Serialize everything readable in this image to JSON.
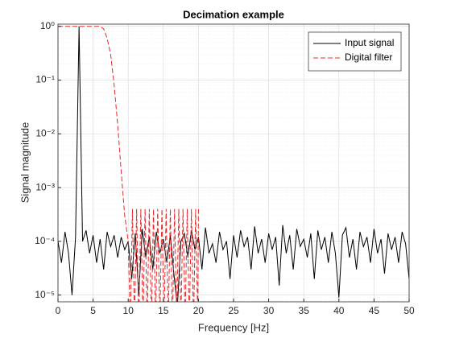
{
  "chart_data": {
    "type": "line",
    "title": "Decimation example",
    "xlabel": "Frequency [Hz]",
    "ylabel": "Signal magnitude",
    "log_y": true,
    "grid": true,
    "minor_grid": true,
    "legend": "upper right",
    "xlim": [
      0,
      50
    ],
    "xticks": [
      0,
      5,
      10,
      15,
      20,
      25,
      30,
      35,
      40,
      45,
      50
    ],
    "ylim": [
      7.5e-06,
      1.1
    ],
    "yticks": [
      {
        "value": 1e-05,
        "label": "10⁻⁵"
      },
      {
        "value": 0.0001,
        "label": "10⁻⁴"
      },
      {
        "value": 0.001,
        "label": "10⁻³"
      },
      {
        "value": 0.01,
        "label": "10⁻²"
      },
      {
        "value": 0.1,
        "label": "10⁻¹"
      },
      {
        "value": 1,
        "label": "10⁰"
      }
    ],
    "series": [
      {
        "name": "Input signal",
        "color": "#000000",
        "style": "solid",
        "x": [
          0,
          0.5,
          1,
          1.5,
          2,
          2.5,
          3,
          3.5,
          4,
          4.5,
          5,
          5.5,
          6,
          6.5,
          7,
          7.5,
          8,
          8.5,
          9,
          9.5,
          10,
          10.5,
          11,
          11.5,
          12,
          12.5,
          13,
          13.5,
          14,
          14.5,
          15,
          15.5,
          16,
          16.5,
          17,
          17.5,
          18,
          18.5,
          19,
          19.5,
          20,
          20.5,
          21,
          21.5,
          22,
          22.5,
          23,
          23.5,
          24,
          24.5,
          25,
          25.5,
          26,
          26.5,
          27,
          27.5,
          28,
          28.5,
          29,
          29.5,
          30,
          30.5,
          31,
          31.5,
          32,
          32.5,
          33,
          33.5,
          34,
          34.5,
          35,
          35.5,
          36,
          36.5,
          37,
          37.5,
          38,
          38.5,
          39,
          39.5,
          40,
          40.5,
          41,
          41.5,
          42,
          42.5,
          43,
          43.5,
          44,
          44.5,
          45,
          45.5,
          46,
          46.5,
          47,
          47.5,
          48,
          48.5,
          49,
          49.5,
          50
        ],
        "values": [
          0.0001,
          4e-05,
          0.00015,
          6e-05,
          1e-05,
          0.00012,
          1,
          0.0001,
          0.00016,
          6e-05,
          0.00013,
          4e-05,
          0.00011,
          3e-05,
          0.00015,
          8e-05,
          0.00013,
          5e-05,
          0.00012,
          7e-05,
          0.0001,
          2e-05,
          0.00014,
          1e-05,
          0.00017,
          5e-05,
          0.00012,
          3e-05,
          0.00015,
          6e-05,
          0.00011,
          4e-05,
          0.00013,
          2.5e-05,
          6e-06,
          0.0001,
          0.00014,
          5e-05,
          0.00016,
          7e-05,
          0.00012,
          3e-05,
          0.00018,
          6e-05,
          9e-05,
          4e-05,
          0.00015,
          7e-05,
          0.0001,
          2e-05,
          0.00013,
          5e-05,
          0.00016,
          8e-05,
          0.00012,
          3e-05,
          0.00019,
          6e-05,
          0.00011,
          4e-05,
          0.00014,
          7e-05,
          0.00012,
          1.5e-05,
          0.0002,
          6e-05,
          0.00013,
          3e-05,
          0.00017,
          8e-05,
          0.00011,
          5e-05,
          0.00014,
          2e-05,
          0.00016,
          7e-05,
          0.00012,
          4e-05,
          0.00015,
          6e-05,
          9e-06,
          0.00013,
          0.00018,
          5e-05,
          0.00011,
          3e-05,
          0.00015,
          8e-05,
          0.00012,
          4e-05,
          0.00017,
          6e-05,
          0.00011,
          2.5e-05,
          0.00014,
          7e-05,
          0.00012,
          4e-05,
          0.00015,
          9e-05,
          2e-05
        ]
      },
      {
        "name": "Digital filter",
        "color": "#e8282b",
        "style": "dashed",
        "x": [
          0,
          1,
          2,
          3,
          4,
          5,
          6,
          6.5,
          7,
          7.5,
          8,
          8.5,
          9,
          9.5,
          10,
          10.3,
          10.6,
          10.9,
          11.2,
          11.5,
          11.8,
          12.1,
          12.4,
          12.7,
          13,
          13.3,
          13.6,
          13.9,
          14.2,
          14.5,
          14.8,
          15.1,
          15.4,
          15.7,
          16,
          16.3,
          16.6,
          16.9,
          17.2,
          17.5,
          17.8,
          18.1,
          18.4,
          18.7,
          19,
          19.3,
          19.6,
          19.9,
          20
        ],
        "values": [
          1,
          1,
          1,
          1,
          1,
          1,
          1,
          0.9,
          0.6,
          0.3,
          0.08,
          0.015,
          0.002,
          0.0003,
          0.0001,
          3e-06,
          0.0004,
          3e-06,
          0.0004,
          3e-06,
          0.0004,
          3e-06,
          0.0004,
          3e-06,
          0.0004,
          3e-06,
          0.0004,
          3e-06,
          0.0004,
          3e-06,
          0.0004,
          3e-06,
          0.0004,
          3e-06,
          0.0004,
          3e-06,
          0.0004,
          3e-06,
          0.0004,
          3e-06,
          0.0004,
          3e-06,
          0.0004,
          3e-06,
          0.0004,
          3e-06,
          0.0004,
          3e-06,
          0.0004
        ]
      }
    ]
  }
}
